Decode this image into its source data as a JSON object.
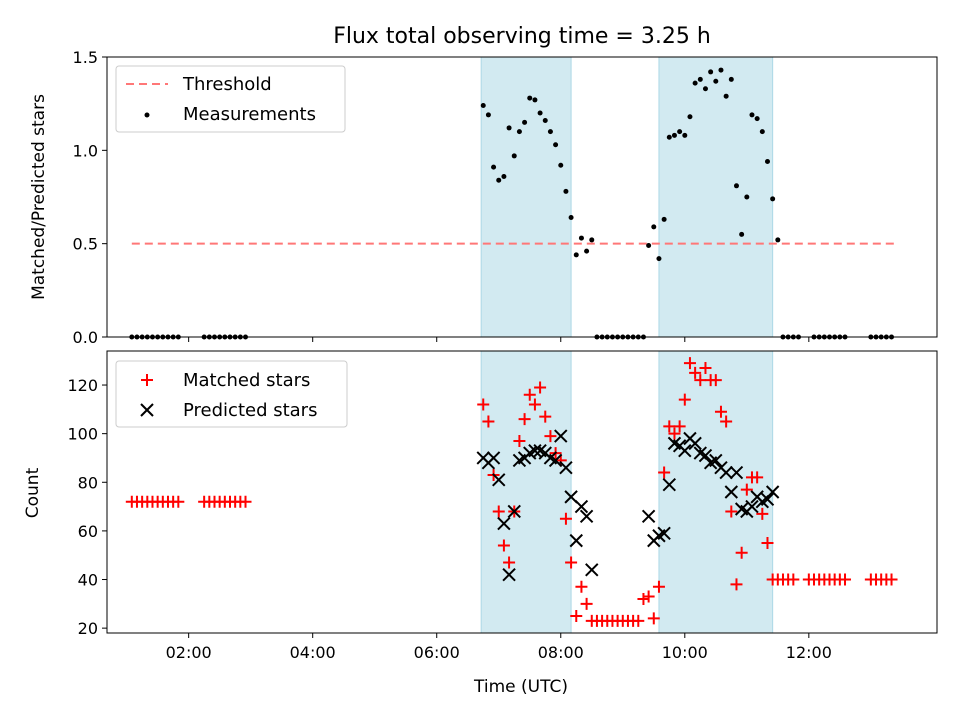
{
  "chart_data": {
    "title": "Flux total observing time = 3.25 h",
    "xlabel": "Time (UTC)",
    "x_tick_labels": [
      "02:00",
      "04:00",
      "06:00",
      "08:00",
      "10:00",
      "12:00"
    ],
    "shaded_intervals": [
      [
        "06:43",
        "08:10"
      ],
      [
        "09:35",
        "11:25"
      ]
    ],
    "shade_color": "#add8e6",
    "panels": [
      {
        "type": "scatter",
        "ylabel": "Matched/Predicted stars",
        "ylim": [
          0,
          1.5
        ],
        "y_tick_labels": [
          "0.0",
          "0.5",
          "1.0",
          "1.5"
        ],
        "legend_position": "upper left",
        "threshold": {
          "name": "Threshold",
          "value": 0.5,
          "x_range": [
            "01:05",
            "13:25"
          ],
          "color": "#ff7777",
          "style": "dashed"
        },
        "series": [
          {
            "name": "Measurements",
            "color": "#000000",
            "marker": "dot",
            "points": [
              [
                "01:05",
                0
              ],
              [
                "01:10",
                0
              ],
              [
                "01:15",
                0
              ],
              [
                "01:20",
                0
              ],
              [
                "01:25",
                0
              ],
              [
                "01:30",
                0
              ],
              [
                "01:35",
                0
              ],
              [
                "01:40",
                0
              ],
              [
                "01:45",
                0
              ],
              [
                "01:50",
                0
              ],
              [
                "02:15",
                0
              ],
              [
                "02:20",
                0
              ],
              [
                "02:25",
                0
              ],
              [
                "02:30",
                0
              ],
              [
                "02:35",
                0
              ],
              [
                "02:40",
                0
              ],
              [
                "02:45",
                0
              ],
              [
                "02:50",
                0
              ],
              [
                "02:55",
                0
              ],
              [
                "06:45",
                1.24
              ],
              [
                "06:50",
                1.19
              ],
              [
                "06:55",
                0.91
              ],
              [
                "07:00",
                0.84
              ],
              [
                "07:05",
                0.86
              ],
              [
                "07:10",
                1.12
              ],
              [
                "07:15",
                0.97
              ],
              [
                "07:20",
                1.1
              ],
              [
                "07:25",
                1.15
              ],
              [
                "07:30",
                1.28
              ],
              [
                "07:35",
                1.27
              ],
              [
                "07:40",
                1.2
              ],
              [
                "07:45",
                1.16
              ],
              [
                "07:50",
                1.1
              ],
              [
                "07:55",
                1.03
              ],
              [
                "08:00",
                0.92
              ],
              [
                "08:05",
                0.78
              ],
              [
                "08:10",
                0.64
              ],
              [
                "08:15",
                0.44
              ],
              [
                "08:20",
                0.53
              ],
              [
                "08:25",
                0.46
              ],
              [
                "08:30",
                0.52
              ],
              [
                "08:35",
                0
              ],
              [
                "08:40",
                0
              ],
              [
                "08:45",
                0
              ],
              [
                "08:50",
                0
              ],
              [
                "08:55",
                0
              ],
              [
                "09:00",
                0
              ],
              [
                "09:05",
                0
              ],
              [
                "09:10",
                0
              ],
              [
                "09:15",
                0
              ],
              [
                "09:20",
                0
              ],
              [
                "09:25",
                0.49
              ],
              [
                "09:30",
                0.59
              ],
              [
                "09:35",
                0.42
              ],
              [
                "09:40",
                0.63
              ],
              [
                "09:45",
                1.07
              ],
              [
                "09:50",
                1.08
              ],
              [
                "09:55",
                1.1
              ],
              [
                "10:00",
                1.08
              ],
              [
                "10:05",
                1.18
              ],
              [
                "10:10",
                1.36
              ],
              [
                "10:15",
                1.38
              ],
              [
                "10:20",
                1.33
              ],
              [
                "10:25",
                1.42
              ],
              [
                "10:30",
                1.37
              ],
              [
                "10:35",
                1.43
              ],
              [
                "10:40",
                1.29
              ],
              [
                "10:45",
                1.38
              ],
              [
                "10:50",
                0.81
              ],
              [
                "10:55",
                0.55
              ],
              [
                "11:00",
                0.75
              ],
              [
                "11:05",
                1.19
              ],
              [
                "11:10",
                1.17
              ],
              [
                "11:15",
                1.1
              ],
              [
                "11:20",
                0.94
              ],
              [
                "11:25",
                0.74
              ],
              [
                "11:30",
                0.52
              ],
              [
                "11:35",
                0
              ],
              [
                "11:40",
                0
              ],
              [
                "11:45",
                0
              ],
              [
                "11:50",
                0
              ],
              [
                "12:05",
                0
              ],
              [
                "12:10",
                0
              ],
              [
                "12:15",
                0
              ],
              [
                "12:20",
                0
              ],
              [
                "12:25",
                0
              ],
              [
                "12:30",
                0
              ],
              [
                "12:35",
                0
              ],
              [
                "13:00",
                0
              ],
              [
                "13:05",
                0
              ],
              [
                "13:10",
                0
              ],
              [
                "13:15",
                0
              ],
              [
                "13:20",
                0
              ]
            ]
          }
        ]
      },
      {
        "type": "scatter",
        "ylabel": "Count",
        "ylim": [
          18,
          134
        ],
        "y_tick_labels": [
          "20",
          "40",
          "60",
          "80",
          "100",
          "120"
        ],
        "legend_position": "upper left",
        "series": [
          {
            "name": "Matched stars",
            "color": "#ff0000",
            "marker": "plus",
            "points": [
              [
                "01:05",
                72
              ],
              [
                "01:10",
                72
              ],
              [
                "01:15",
                72
              ],
              [
                "01:20",
                72
              ],
              [
                "01:25",
                72
              ],
              [
                "01:30",
                72
              ],
              [
                "01:35",
                72
              ],
              [
                "01:40",
                72
              ],
              [
                "01:45",
                72
              ],
              [
                "01:50",
                72
              ],
              [
                "02:15",
                72
              ],
              [
                "02:20",
                72
              ],
              [
                "02:25",
                72
              ],
              [
                "02:30",
                72
              ],
              [
                "02:35",
                72
              ],
              [
                "02:40",
                72
              ],
              [
                "02:45",
                72
              ],
              [
                "02:50",
                72
              ],
              [
                "02:55",
                72
              ],
              [
                "06:45",
                112
              ],
              [
                "06:50",
                105
              ],
              [
                "06:55",
                83
              ],
              [
                "07:00",
                68
              ],
              [
                "07:05",
                54
              ],
              [
                "07:10",
                47
              ],
              [
                "07:15",
                68
              ],
              [
                "07:20",
                97
              ],
              [
                "07:25",
                106
              ],
              [
                "07:30",
                116
              ],
              [
                "07:35",
                112
              ],
              [
                "07:40",
                119
              ],
              [
                "07:45",
                107
              ],
              [
                "07:50",
                99
              ],
              [
                "07:55",
                92
              ],
              [
                "08:00",
                89
              ],
              [
                "08:05",
                65
              ],
              [
                "08:10",
                47
              ],
              [
                "08:15",
                25
              ],
              [
                "08:20",
                37
              ],
              [
                "08:25",
                30
              ],
              [
                "08:30",
                23
              ],
              [
                "08:35",
                23
              ],
              [
                "08:40",
                23
              ],
              [
                "08:45",
                23
              ],
              [
                "08:50",
                23
              ],
              [
                "08:55",
                23
              ],
              [
                "09:00",
                23
              ],
              [
                "09:05",
                23
              ],
              [
                "09:10",
                23
              ],
              [
                "09:15",
                23
              ],
              [
                "09:20",
                32
              ],
              [
                "09:25",
                33
              ],
              [
                "09:30",
                24
              ],
              [
                "09:35",
                37
              ],
              [
                "09:40",
                84
              ],
              [
                "09:45",
                103
              ],
              [
                "09:50",
                100
              ],
              [
                "09:55",
                103
              ],
              [
                "10:00",
                114
              ],
              [
                "10:05",
                129
              ],
              [
                "10:10",
                125
              ],
              [
                "10:15",
                122
              ],
              [
                "10:20",
                127
              ],
              [
                "10:25",
                122
              ],
              [
                "10:30",
                122
              ],
              [
                "10:35",
                109
              ],
              [
                "10:40",
                105
              ],
              [
                "10:45",
                68
              ],
              [
                "10:50",
                38
              ],
              [
                "10:55",
                51
              ],
              [
                "11:00",
                77
              ],
              [
                "11:05",
                82
              ],
              [
                "11:10",
                82
              ],
              [
                "11:15",
                67
              ],
              [
                "11:20",
                55
              ],
              [
                "11:25",
                40
              ],
              [
                "11:30",
                40
              ],
              [
                "11:35",
                40
              ],
              [
                "11:40",
                40
              ],
              [
                "11:45",
                40
              ],
              [
                "12:00",
                40
              ],
              [
                "12:05",
                40
              ],
              [
                "12:10",
                40
              ],
              [
                "12:15",
                40
              ],
              [
                "12:20",
                40
              ],
              [
                "12:25",
                40
              ],
              [
                "12:30",
                40
              ],
              [
                "12:35",
                40
              ],
              [
                "13:00",
                40
              ],
              [
                "13:05",
                40
              ],
              [
                "13:10",
                40
              ],
              [
                "13:15",
                40
              ],
              [
                "13:20",
                40
              ]
            ]
          },
          {
            "name": "Predicted stars",
            "color": "#000000",
            "marker": "x",
            "points": [
              [
                "06:45",
                90
              ],
              [
                "06:50",
                88
              ],
              [
                "06:55",
                90
              ],
              [
                "07:00",
                81
              ],
              [
                "07:05",
                63
              ],
              [
                "07:10",
                42
              ],
              [
                "07:15",
                68
              ],
              [
                "07:20",
                89
              ],
              [
                "07:25",
                90
              ],
              [
                "07:30",
                92
              ],
              [
                "07:35",
                93
              ],
              [
                "07:40",
                93
              ],
              [
                "07:45",
                92
              ],
              [
                "07:50",
                90
              ],
              [
                "07:55",
                89
              ],
              [
                "08:00",
                99
              ],
              [
                "08:05",
                86
              ],
              [
                "08:10",
                74
              ],
              [
                "08:15",
                56
              ],
              [
                "08:20",
                70
              ],
              [
                "08:25",
                66
              ],
              [
                "08:30",
                44
              ],
              [
                "09:25",
                66
              ],
              [
                "09:30",
                56
              ],
              [
                "09:35",
                58
              ],
              [
                "09:40",
                59
              ],
              [
                "09:45",
                79
              ],
              [
                "09:50",
                96
              ],
              [
                "09:55",
                95
              ],
              [
                "10:00",
                93
              ],
              [
                "10:05",
                98
              ],
              [
                "10:10",
                96
              ],
              [
                "10:15",
                92
              ],
              [
                "10:20",
                91
              ],
              [
                "10:25",
                88
              ],
              [
                "10:30",
                89
              ],
              [
                "10:35",
                86
              ],
              [
                "10:40",
                84
              ],
              [
                "10:45",
                76
              ],
              [
                "10:50",
                84
              ],
              [
                "10:55",
                69
              ],
              [
                "11:00",
                68
              ],
              [
                "11:05",
                70
              ],
              [
                "11:10",
                74
              ],
              [
                "11:15",
                72
              ],
              [
                "11:20",
                73
              ],
              [
                "11:25",
                76
              ]
            ]
          }
        ]
      }
    ]
  }
}
